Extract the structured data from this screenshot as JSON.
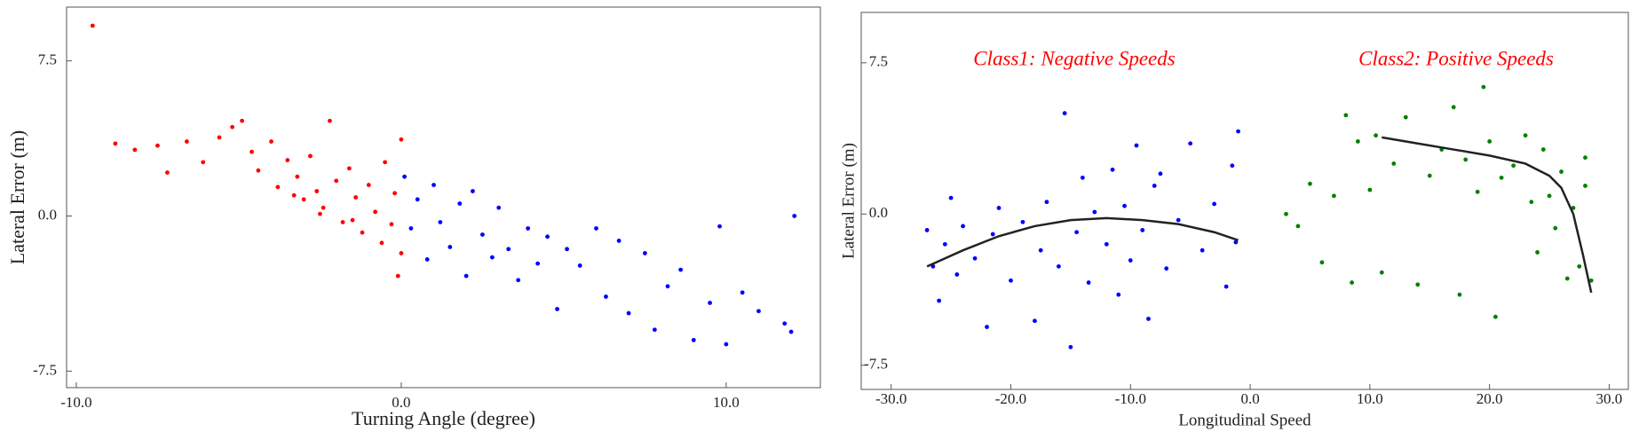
{
  "chart_data": [
    {
      "type": "scatter",
      "x_label": "Turning Angle (degree)",
      "y_label": "Lateral Error (m)",
      "xlim": [
        -10.3,
        12.9
      ],
      "ylim": [
        -8.3,
        10.1
      ],
      "xticks": [
        {
          "value": -10,
          "label": "-10.0"
        },
        {
          "value": 0,
          "label": "0.0"
        },
        {
          "value": 10,
          "label": "10.0"
        }
      ],
      "yticks": [
        -7.5,
        {
          "value": 0,
          "label": "0.0"
        },
        7.5
      ],
      "series": [
        {
          "color": "#ff0000",
          "mode": "points",
          "x": [
            -9.5,
            -8.8,
            -8.2,
            -7.5,
            -7.2,
            -6.6,
            -6.1,
            -5.6,
            -5.2,
            -4.9,
            -4.6,
            -4.4,
            -4.0,
            -3.8,
            -3.5,
            -3.2,
            -3.0,
            -2.8,
            -2.6,
            -2.4,
            -2.2,
            -2.0,
            -1.8,
            -1.6,
            -1.4,
            -1.2,
            -1.0,
            -0.8,
            -0.6,
            -0.5,
            -0.3,
            -0.2,
            -0.1,
            0,
            0,
            -1.5,
            -2.5,
            -3.3
          ],
          "values": [
            9.2,
            3.5,
            3.2,
            3.4,
            2.1,
            3.6,
            2.6,
            3.8,
            4.3,
            4.6,
            3.1,
            2.2,
            3.6,
            1.4,
            2.7,
            1.9,
            0.8,
            2.9,
            1.2,
            0.4,
            4.6,
            1.7,
            -0.3,
            2.3,
            0.9,
            -0.8,
            1.5,
            0.2,
            -1.3,
            2.6,
            -0.4,
            1.1,
            -2.9,
            3.7,
            -1.8,
            -0.2,
            0.1,
            1.0
          ]
        },
        {
          "color": "#0000ff",
          "mode": "points",
          "x": [
            0.1,
            0.3,
            0.5,
            0.8,
            1.0,
            1.2,
            1.5,
            1.8,
            2.0,
            2.2,
            2.5,
            2.8,
            3.0,
            3.3,
            3.6,
            3.9,
            4.2,
            4.5,
            4.8,
            5.1,
            5.5,
            6.0,
            6.3,
            6.7,
            7.0,
            7.5,
            7.8,
            8.2,
            8.6,
            9.0,
            9.5,
            9.8,
            10.0,
            10.5,
            11.0,
            11.8,
            12.0,
            12.1
          ],
          "values": [
            1.9,
            -0.6,
            0.8,
            -2.1,
            1.5,
            -0.3,
            -1.5,
            0.6,
            -2.9,
            1.2,
            -0.9,
            -2.0,
            0.4,
            -1.6,
            -3.1,
            -0.6,
            -2.3,
            -1.0,
            -4.5,
            -1.6,
            -2.4,
            -0.6,
            -3.9,
            -1.2,
            -4.7,
            -1.8,
            -5.5,
            -3.4,
            -2.6,
            -6.0,
            -4.2,
            -0.5,
            -6.2,
            -3.7,
            -4.6,
            -5.2,
            -5.6,
            0.0
          ]
        }
      ]
    },
    {
      "type": "scatter",
      "x_label": "Longitudinal Speed",
      "y_label": "Lateral Error (m)",
      "annotations": [
        "Class1: Negative Speeds",
        "Class2: Positive Speeds"
      ],
      "xlim": [
        -32.5,
        31.6
      ],
      "ylim": [
        -8.7,
        10.0
      ],
      "xticks": [
        {
          "value": -30,
          "label": "-30.0"
        },
        {
          "value": -20,
          "label": "-20.0"
        },
        {
          "value": -10,
          "label": "-10.0"
        },
        {
          "value": 0,
          "label": "0.0"
        },
        {
          "value": 10,
          "label": "10.0"
        },
        {
          "value": 20,
          "label": "20.0"
        },
        {
          "value": 30,
          "label": "30.0"
        }
      ],
      "yticks": [
        -7.5,
        {
          "value": 0,
          "label": "0.0"
        },
        7.5
      ],
      "series": [
        {
          "color": "#0000ff",
          "mode": "points",
          "x": [
            -27,
            -26.5,
            -26,
            -25.5,
            -25,
            -24.5,
            -24,
            -23,
            -22,
            -21.5,
            -21,
            -20,
            -19,
            -18,
            -17.5,
            -17,
            -16,
            -15.5,
            -15,
            -14.5,
            -14,
            -13.5,
            -13,
            -12,
            -11.5,
            -11,
            -10.5,
            -10,
            -9.5,
            -9,
            -8.5,
            -8,
            -7.5,
            -7,
            -6,
            -5,
            -4,
            -3,
            -2,
            -1.5,
            -1,
            -1.2
          ],
          "values": [
            -0.8,
            -2.6,
            -4.3,
            -1.5,
            0.8,
            -3.0,
            -0.6,
            -2.2,
            -5.6,
            -1.0,
            0.3,
            -3.3,
            -0.4,
            -5.3,
            -1.8,
            0.6,
            -2.6,
            5.0,
            -6.6,
            -0.9,
            1.8,
            -3.4,
            0.1,
            -1.5,
            2.2,
            -4.0,
            0.4,
            -2.3,
            3.4,
            -0.8,
            -5.2,
            1.4,
            2.0,
            -2.7,
            -0.3,
            3.5,
            -1.8,
            0.5,
            -3.6,
            2.4,
            4.1,
            -1.4
          ]
        },
        {
          "color": "#008000",
          "mode": "points",
          "x": [
            3,
            4,
            5,
            6,
            7,
            8,
            8.5,
            9,
            10,
            10.5,
            11,
            12,
            13,
            14,
            15,
            16,
            17,
            17.5,
            18,
            19,
            19.5,
            20,
            20.5,
            21,
            22,
            23,
            23.5,
            24,
            24.5,
            25,
            25.5,
            26,
            26.5,
            27,
            27.5,
            28,
            28.5,
            28
          ],
          "values": [
            0,
            -0.6,
            1.5,
            -2.4,
            0.9,
            4.9,
            -3.4,
            3.6,
            1.2,
            3.9,
            -2.9,
            2.5,
            4.8,
            -3.5,
            1.9,
            3.2,
            5.3,
            -4.0,
            2.7,
            1.1,
            6.3,
            3.6,
            -5.1,
            1.8,
            2.4,
            3.9,
            0.6,
            -1.9,
            3.2,
            0.9,
            -0.7,
            2.1,
            -3.2,
            0.3,
            -2.6,
            1.4,
            -3.3,
            2.8
          ]
        },
        {
          "color": "#222222",
          "mode": "line",
          "x": [
            -27,
            -24,
            -21,
            -18,
            -15,
            -12,
            -9,
            -6,
            -3,
            -1
          ],
          "values": [
            -2.6,
            -1.8,
            -1.1,
            -0.6,
            -0.3,
            -0.2,
            -0.3,
            -0.5,
            -0.9,
            -1.3
          ]
        },
        {
          "color": "#222222",
          "mode": "line",
          "x": [
            11,
            14,
            17,
            20,
            23,
            25,
            26,
            27,
            27.8,
            28.5
          ],
          "values": [
            3.8,
            3.5,
            3.2,
            2.9,
            2.5,
            1.9,
            1.3,
            0,
            -2,
            -3.9
          ]
        }
      ]
    }
  ]
}
